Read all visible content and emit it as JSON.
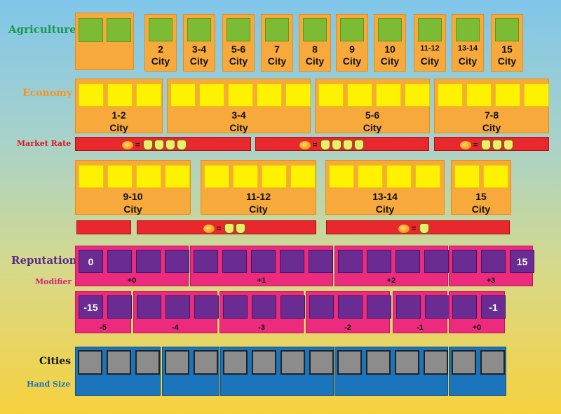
{
  "labels": {
    "agriculture": "Agriculture",
    "economy": "Economy",
    "market_rate": "Market Rate",
    "reputation": "Reputation",
    "modifier": "Modifier",
    "cities": "Cities",
    "hand_size": "Hand Size"
  },
  "city_word": "City",
  "agriculture": [
    {
      "range": ""
    },
    {
      "range": "2"
    },
    {
      "range": "3-4"
    },
    {
      "range": "5-6"
    },
    {
      "range": "7"
    },
    {
      "range": "8"
    },
    {
      "range": "9"
    },
    {
      "range": "10"
    },
    {
      "range": "11-12"
    },
    {
      "range": "13-14"
    },
    {
      "range": "15"
    }
  ],
  "economy_row1": [
    {
      "range": "1-2"
    },
    {
      "range": "3-4"
    },
    {
      "range": "5-6"
    },
    {
      "range": "7-8"
    }
  ],
  "economy_row2": [
    {
      "range": "9-10"
    },
    {
      "range": "11-12"
    },
    {
      "range": "13-14"
    },
    {
      "range": "15"
    }
  ],
  "market_rate_symbol": "=",
  "market_rates_row1": [
    4,
    4,
    3
  ],
  "market_rates_row2": [
    0,
    2,
    1
  ],
  "reputation_row1": {
    "start_value": "0",
    "end_value": "15",
    "modifiers": [
      "+0",
      "+1",
      "+2",
      "+3"
    ]
  },
  "reputation_row2": {
    "start_value": "-15",
    "end_value": "-1",
    "modifiers": [
      "-5",
      "-4",
      "-3",
      "-2",
      "-1",
      "+0"
    ]
  },
  "colors": {
    "agriculture_label": "#1a9a4a",
    "economy_label": "#f7941d",
    "market_rate_label": "#d71920",
    "reputation_label": "#5b2a86",
    "modifier_label": "#d9217a",
    "cities_label": "#111111",
    "hand_size_label": "#1b75bc"
  },
  "icons": {
    "coin": "coin-icon",
    "goods": "goods-bag-icon"
  }
}
